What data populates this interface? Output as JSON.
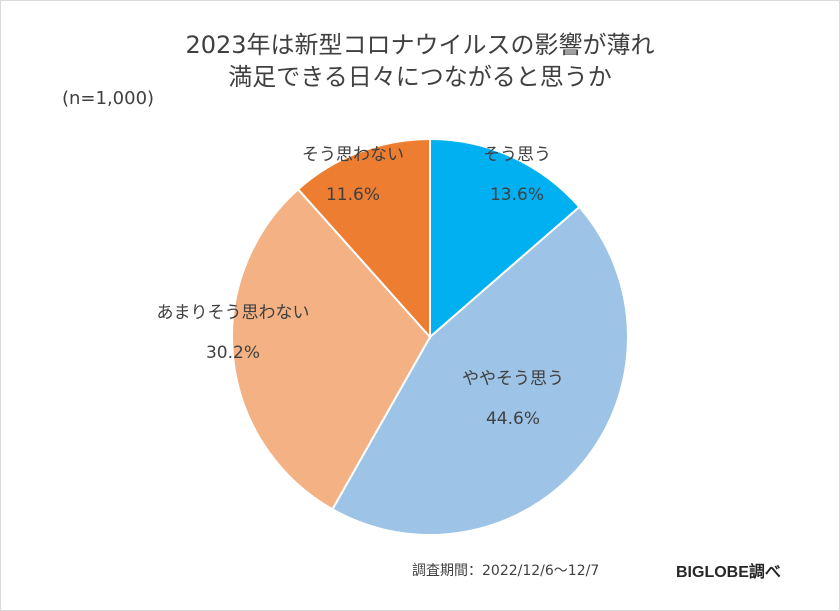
{
  "chart_data": {
    "type": "pie",
    "title_lines": [
      "2023年は新型コロナウイルスの影響が薄れ",
      "満足できる日々につながると思うか"
    ],
    "sample_note": "(n=1,000)",
    "slices": [
      {
        "label": "そう思う",
        "value": 13.6,
        "value_label": "13.6%",
        "color": "#00B0F0"
      },
      {
        "label": "ややそう思う",
        "value": 44.6,
        "value_label": "44.6%",
        "color": "#9DC3E6"
      },
      {
        "label": "あまりそう思わない",
        "value": 30.2,
        "value_label": "30.2%",
        "color": "#F4B183"
      },
      {
        "label": "そう思わない",
        "value": 11.6,
        "value_label": "11.6%",
        "color": "#ED7D31"
      }
    ],
    "start_angle": "12 o'clock",
    "direction": "clockwise"
  },
  "footer": {
    "survey_period": "調査期間：2022/12/6～12/7",
    "source": "BIGLOBE調べ"
  }
}
